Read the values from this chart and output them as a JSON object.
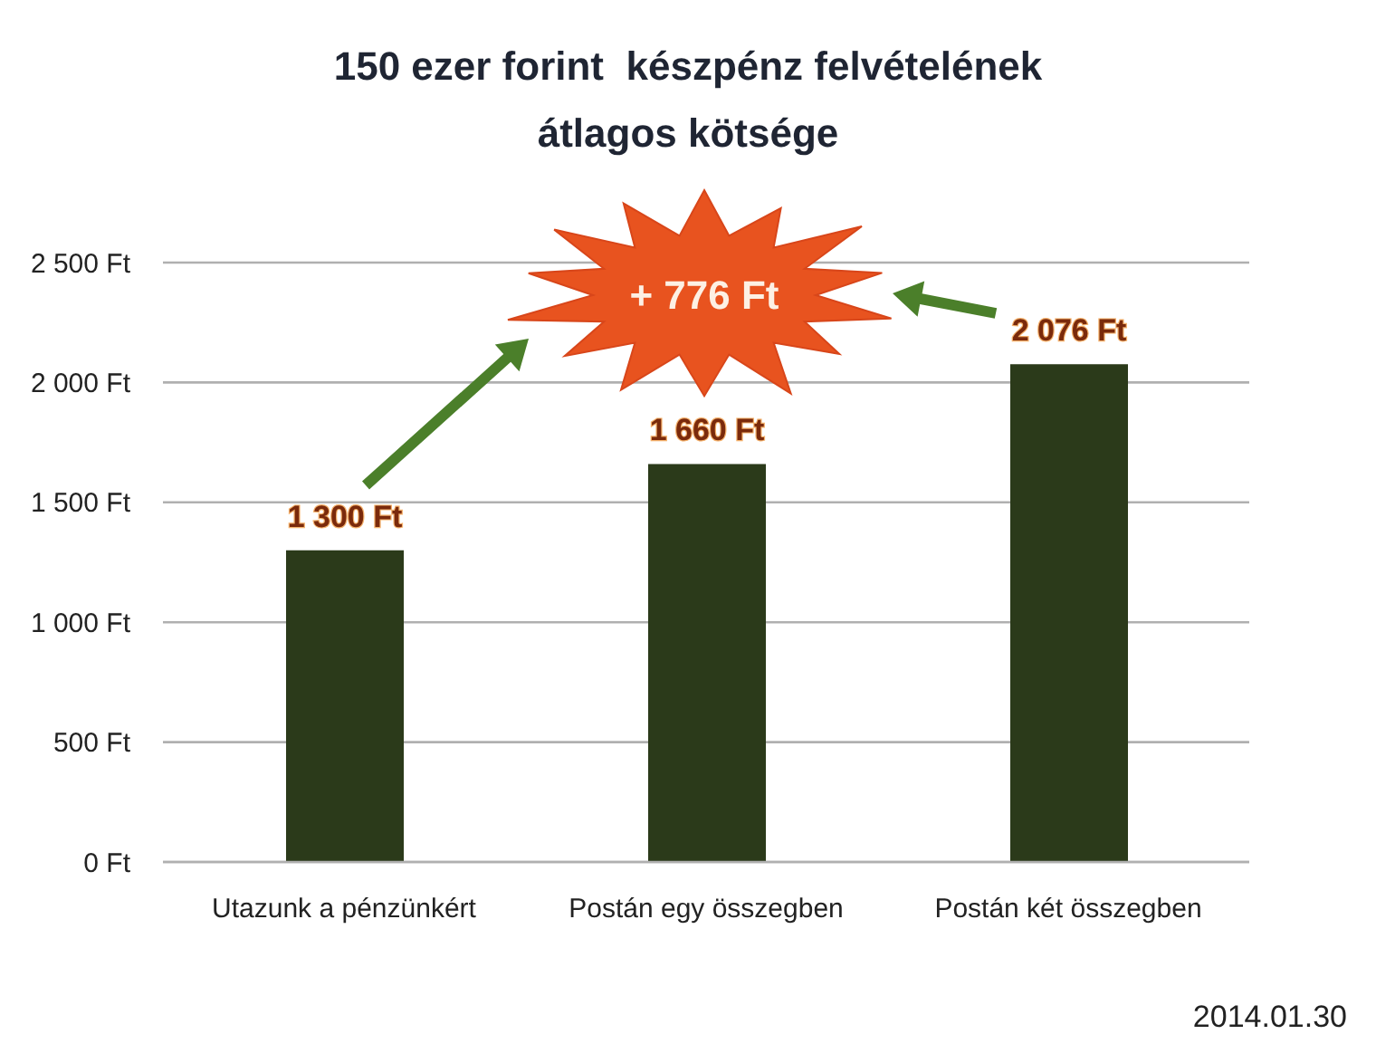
{
  "chart_data": {
    "type": "bar",
    "title": "150 ezer forint  készpénz felvételének\nátlagos kötsége",
    "categories": [
      "Utazunk a pénzünkért",
      "Postán egy összegben",
      "Postán két összegben"
    ],
    "values": [
      1300,
      1660,
      2076
    ],
    "color": "#2b3a1a",
    "value_labels": [
      "1 300 Ft",
      "1 660 Ft",
      "2 076 Ft"
    ],
    "ylim": [
      0,
      2500
    ],
    "yticks": [
      {
        "value": 0,
        "label": "0 Ft"
      },
      {
        "value": 500,
        "label": "500 Ft"
      },
      {
        "value": 1000,
        "label": "1 000 Ft"
      },
      {
        "value": 1500,
        "label": "1 500 Ft"
      },
      {
        "value": 2000,
        "label": "2 000 Ft"
      },
      {
        "value": 2500,
        "label": "2 500 Ft"
      }
    ],
    "grid": "y",
    "annotations": [
      "+ 776 Ft",
      "2014.01.30"
    ]
  }
}
